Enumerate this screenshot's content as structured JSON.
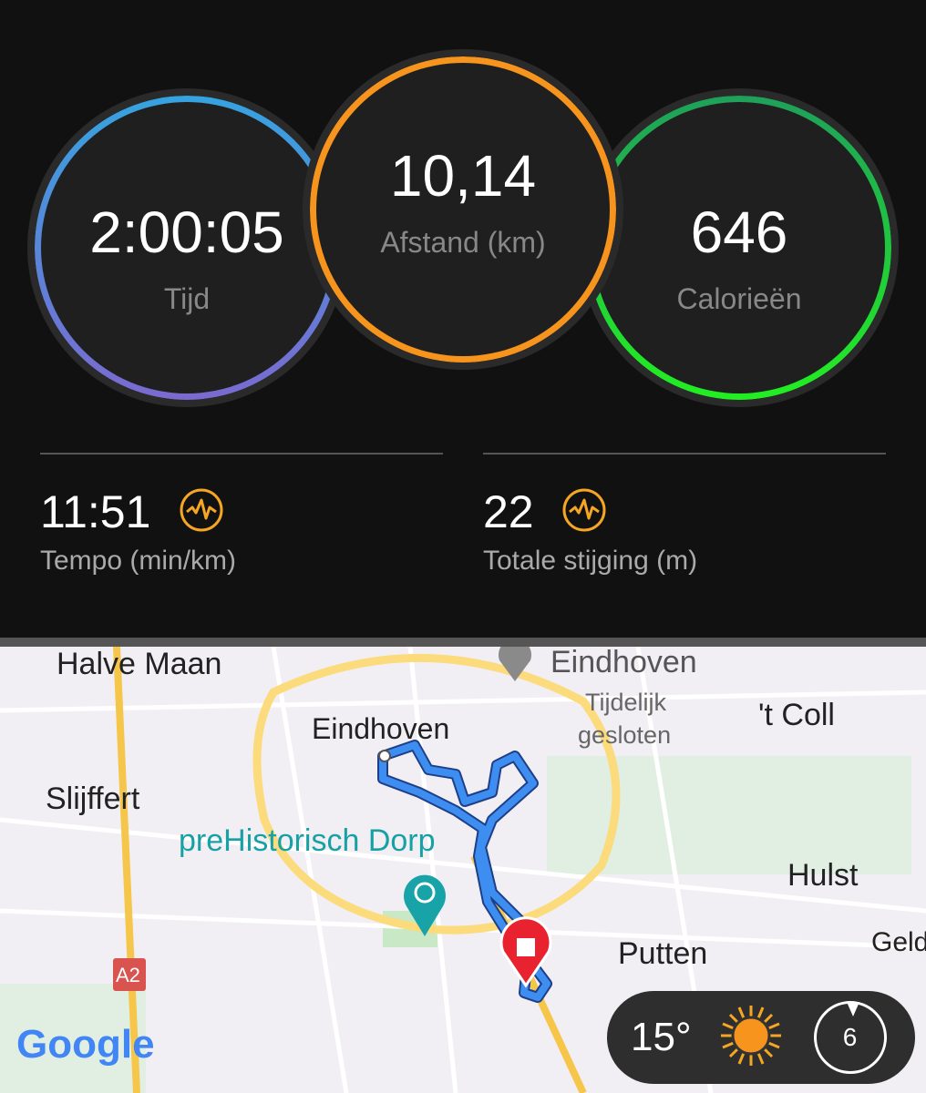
{
  "summary": {
    "time": {
      "value": "2:00:05",
      "label": "Tijd"
    },
    "distance": {
      "value": "10,14",
      "label": "Afstand (km)"
    },
    "calories": {
      "value": "646",
      "label": "Calorieën"
    }
  },
  "stats": [
    {
      "value": "11:51",
      "label": "Tempo (min/km)",
      "icon": "activity-pulse-icon"
    },
    {
      "value": "22",
      "label": "Totale stijging (m)",
      "icon": "activity-pulse-icon"
    }
  ],
  "map": {
    "labels": [
      "Halve Maan",
      "Eindhoven",
      "Tijdelijk",
      "gesloten",
      "'t Coll",
      "Eindhoven",
      "Slijffert",
      "preHistorisch Dorp",
      "Hulst",
      "Putten",
      "Geld",
      "A2"
    ],
    "logo": "Google"
  },
  "weather": {
    "temperature": "15°",
    "condition_icon": "sun-icon",
    "wind": "6"
  },
  "colors": {
    "time": "#3b9fe0",
    "distance": "#f7941d",
    "calories": "#22dd33",
    "accent": "#f5a623",
    "route": "#2f7fe8"
  }
}
